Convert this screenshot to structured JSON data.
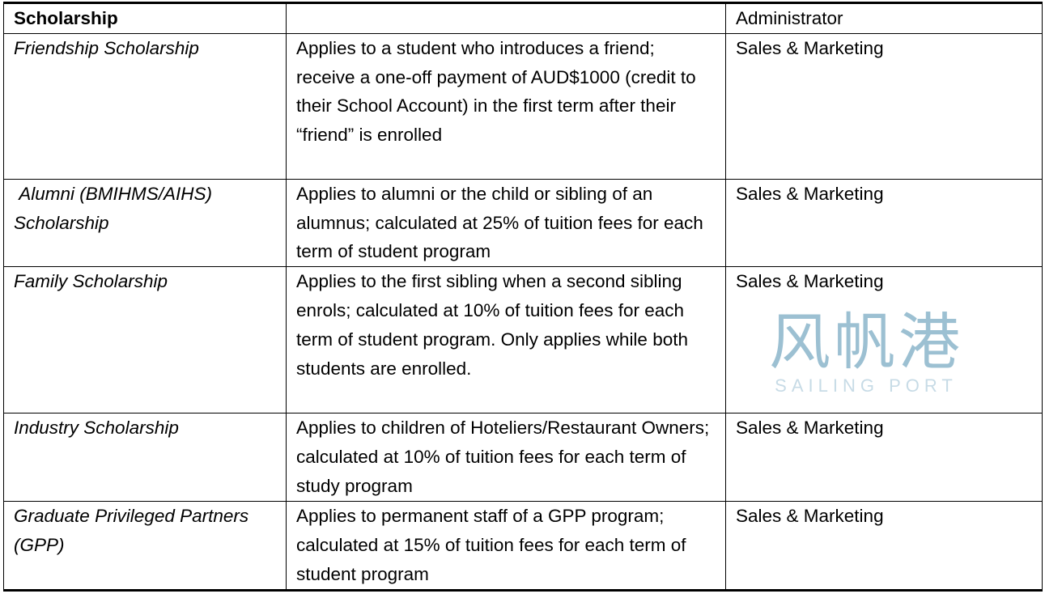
{
  "header": {
    "col1": "Scholarship",
    "col2": "",
    "col3": "Administrator"
  },
  "rows": [
    {
      "name": "Friendship Scholarship",
      "description": "Applies to a student who introduces a friend; receive a one-off payment of AUD$1000 (credit to their School Account) in the first term after their “friend” is enrolled",
      "administrator": "Sales & Marketing"
    },
    {
      "name": " Alumni (BMIHMS/AIHS) Scholarship",
      "description": "Applies to alumni or the child or sibling of an alumnus; calculated at 25% of tuition fees for each term of student program",
      "administrator": "Sales & Marketing"
    },
    {
      "name": "Family Scholarship",
      "description": "Applies to the first sibling when a second sibling enrols; calculated at 10% of tuition fees for each term of student program. Only applies while both students are enrolled.",
      "administrator": "Sales & Marketing"
    },
    {
      "name": "Industry Scholarship",
      "description": "Applies to children of Hoteliers/Restaurant Owners; calculated at 10% of tuition fees for each term of study program",
      "administrator": "Sales & Marketing"
    },
    {
      "name": "Graduate Privileged Partners (GPP)",
      "description": "Applies to permanent staff of a GPP program; calculated at 15% of tuition fees for each term of student program",
      "administrator": "Sales & Marketing"
    }
  ],
  "watermark": {
    "cn": "风帆港",
    "en": "SAILING PORT"
  }
}
